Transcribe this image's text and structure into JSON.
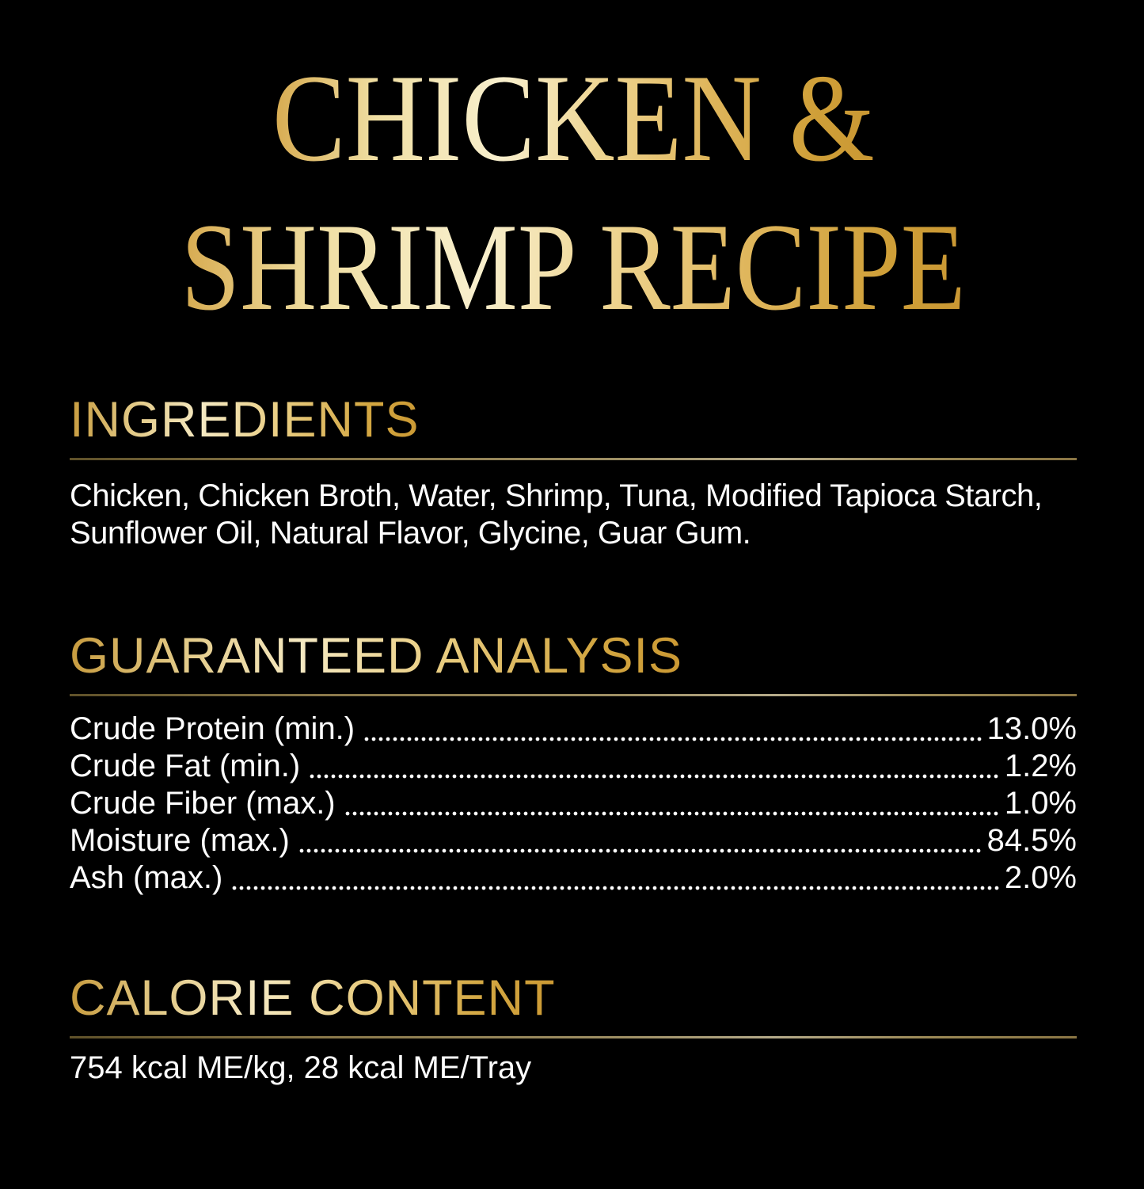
{
  "page": {
    "background": "#000000"
  },
  "title": {
    "line1": "CHICKEN &",
    "line2": "SHRIMP RECIPE"
  },
  "ingredients": {
    "heading": "INGREDIENTS",
    "text": "Chicken, Chicken Broth, Water, Shrimp, Tuna, Modified Tapioca Starch, Sunflower Oil, Natural Flavor, Glycine, Guar Gum."
  },
  "guaranteed_analysis": {
    "heading": "GUARANTEED ANALYSIS",
    "rows": [
      {
        "label": "Crude Protein (min.)",
        "value": "13.0%"
      },
      {
        "label": "Crude Fat (min.)",
        "value": "1.2%"
      },
      {
        "label": "Crude Fiber (max.)",
        "value": "1.0%"
      },
      {
        "label": "Moisture (max.)",
        "value": "84.5%"
      },
      {
        "label": "Ash (max.)",
        "value": "2.0%"
      }
    ]
  },
  "calorie_content": {
    "heading": "CALORIE CONTENT",
    "text": "754 kcal ME/kg, 28 kcal ME/Tray"
  },
  "colors": {
    "gold_dark": "#c99733",
    "gold_mid": "#d9ad52",
    "gold_light": "#f8efcd",
    "rule_gold": "#8a7544",
    "body_text": "#ffffff"
  }
}
